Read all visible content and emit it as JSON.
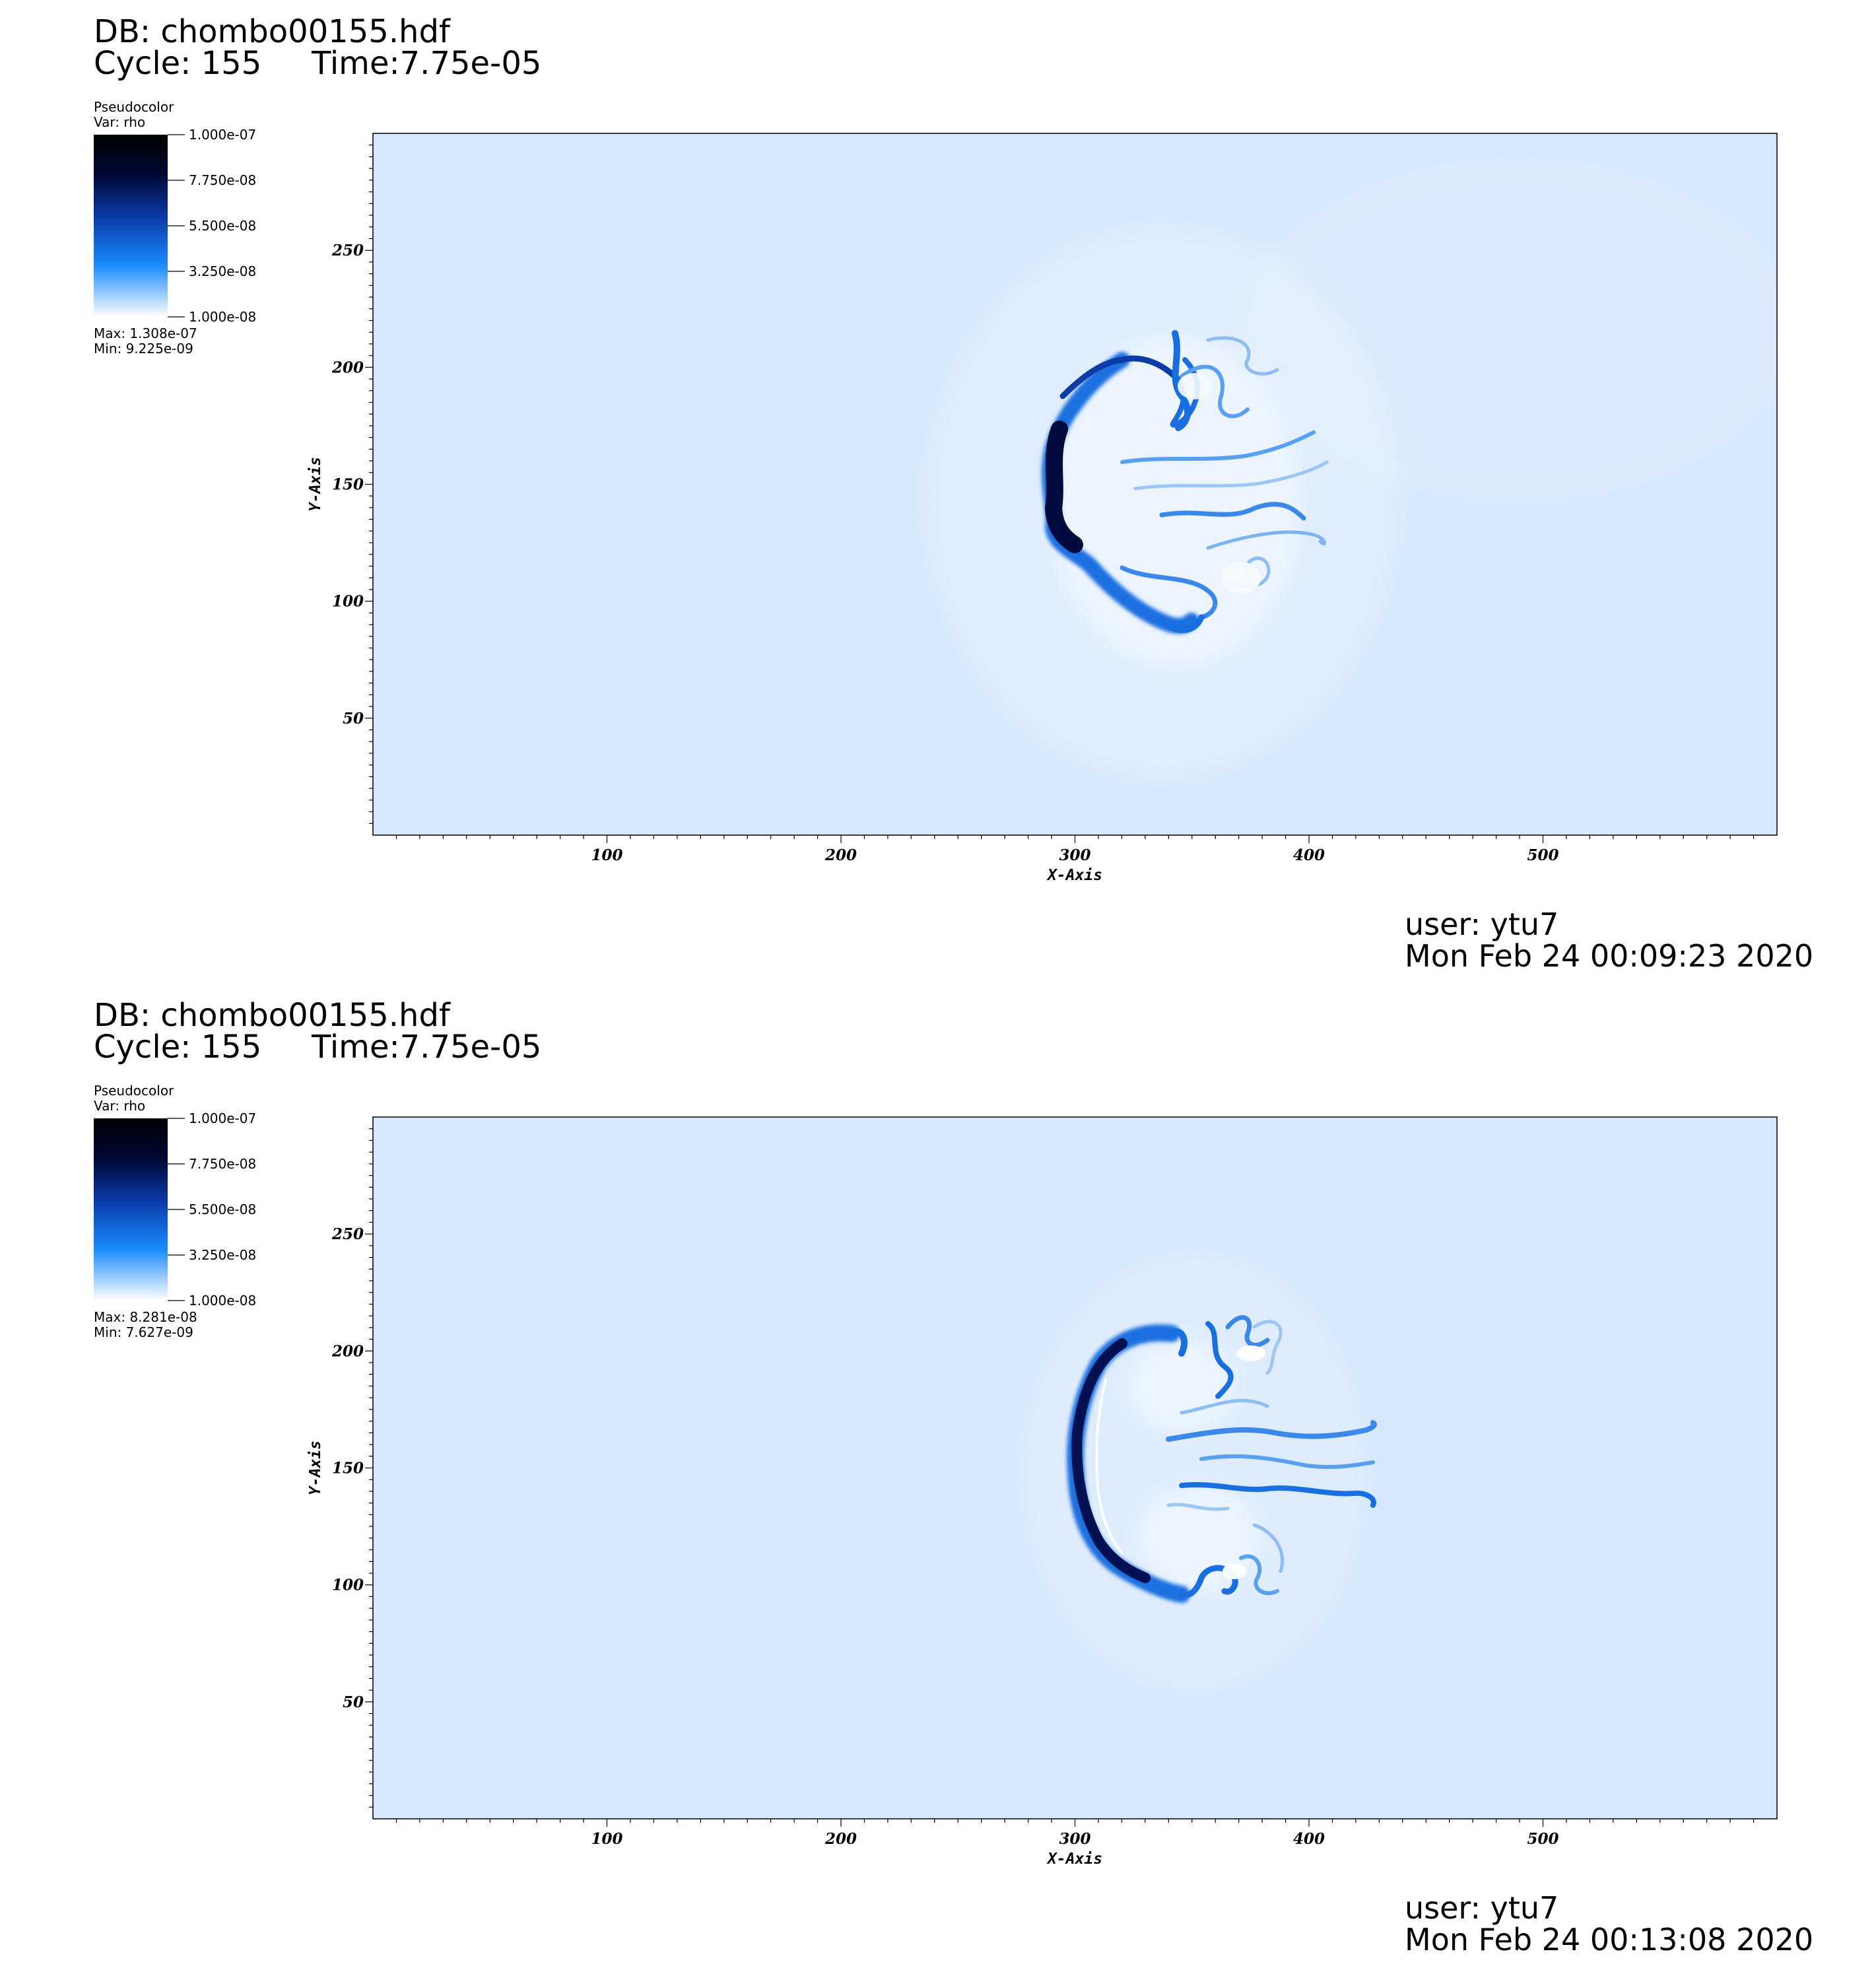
{
  "plots": [
    {
      "db_label": "DB: chombo00155.hdf",
      "cycle_label": "Cycle: 155",
      "time_label": "Time:7.75e-05",
      "legend": {
        "plot_type": "Pseudocolor",
        "var_label": "Var: rho",
        "tick_labels": [
          "1.000e-07",
          "7.750e-08",
          "5.500e-08",
          "3.250e-08",
          "1.000e-08"
        ],
        "max_label": "Max:  1.308e-07",
        "min_label": "Min:  9.225e-09"
      },
      "footer_user": "user: ytu7",
      "footer_date": "Mon Feb 24 00:09:23 2020"
    },
    {
      "db_label": "DB: chombo00155.hdf",
      "cycle_label": "Cycle: 155",
      "time_label": "Time:7.75e-05",
      "legend": {
        "plot_type": "Pseudocolor",
        "var_label": "Var: rho",
        "tick_labels": [
          "1.000e-07",
          "7.750e-08",
          "5.500e-08",
          "3.250e-08",
          "1.000e-08"
        ],
        "max_label": "Max:  8.281e-08",
        "min_label": "Min:  7.627e-09"
      },
      "footer_user": "user: ytu7",
      "footer_date": "Mon Feb 24 00:13:08 2020"
    }
  ],
  "chart_data": [
    {
      "type": "heatmap",
      "variable": "rho",
      "xlabel": "X-Axis",
      "ylabel": "Y-Axis",
      "xlim": [
        0,
        600
      ],
      "ylim": [
        0,
        300
      ],
      "x_ticks": [
        100,
        200,
        300,
        400,
        500
      ],
      "y_ticks": [
        50,
        100,
        150,
        200,
        250
      ],
      "colorbar_range": [
        1e-08,
        1e-07
      ],
      "colorbar_ticks": [
        1e-07,
        7.75e-08,
        5.5e-08,
        3.25e-08,
        1e-08
      ],
      "background_color": "#d6e8fc",
      "front_color": "#000a3d",
      "filament_color": "#1a6fe0",
      "data_max": 1.308e-07,
      "data_min": 9.225e-09,
      "structure_center": [
        345,
        150
      ]
    },
    {
      "type": "heatmap",
      "variable": "rho",
      "xlabel": "X-Axis",
      "ylabel": "Y-Axis",
      "xlim": [
        0,
        600
      ],
      "ylim": [
        0,
        300
      ],
      "x_ticks": [
        100,
        200,
        300,
        400,
        500
      ],
      "y_ticks": [
        50,
        100,
        150,
        200,
        250
      ],
      "colorbar_range": [
        1e-08,
        1e-07
      ],
      "colorbar_ticks": [
        1e-07,
        7.75e-08,
        5.5e-08,
        3.25e-08,
        1e-08
      ],
      "background_color": "#d6e8fc",
      "front_color": "#001050",
      "filament_color": "#1a6fe0",
      "data_max": 8.281e-08,
      "data_min": 7.627e-09,
      "structure_center": [
        355,
        150
      ]
    }
  ]
}
